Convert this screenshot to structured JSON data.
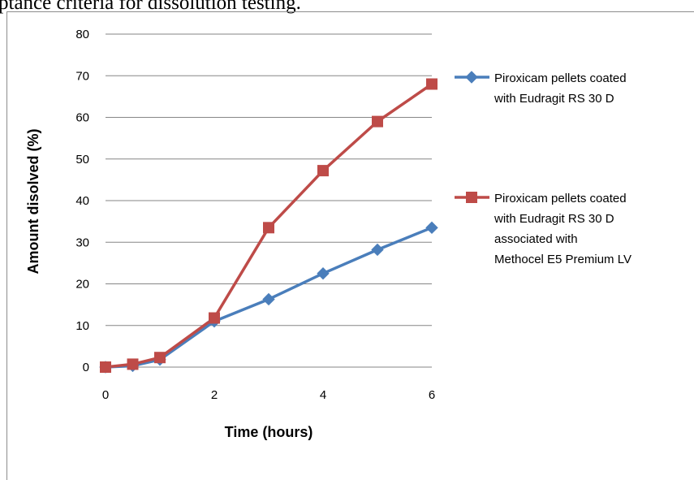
{
  "header_text": "ptance criteria for dissolution testing.",
  "colors": {
    "series1": "#4a7ebb",
    "series2": "#be4b48",
    "grid": "#868686"
  },
  "chart_data": {
    "type": "line",
    "title": "",
    "xlabel": "Time (hours)",
    "ylabel": "Amount disolved (%)",
    "xlim": [
      0,
      6
    ],
    "ylim": [
      0,
      80
    ],
    "xticks": [
      0,
      2,
      4,
      6
    ],
    "yticks": [
      0,
      10,
      20,
      30,
      40,
      50,
      60,
      70,
      80
    ],
    "grid": true,
    "legend_position": "right",
    "series": [
      {
        "name": "Piroxicam pellets coated with Eudragit RS 30 D",
        "legend_lines": [
          "Piroxicam pellets coated",
          "with Eudragit RS 30 D"
        ],
        "marker": "diamond",
        "x": [
          0,
          0.5,
          1,
          2,
          3,
          4,
          5,
          6
        ],
        "y": [
          0,
          0.3,
          1.8,
          11,
          16.3,
          22.5,
          28.2,
          33.5
        ]
      },
      {
        "name": "Piroxicam pellets coated with Eudragit RS 30 D associated with Methocel E5 Premium LV",
        "legend_lines": [
          "Piroxicam pellets coated",
          "with Eudragit RS 30 D",
          "associated with",
          "Methocel E5 Premium LV"
        ],
        "marker": "square",
        "x": [
          0,
          0.5,
          1,
          2,
          3,
          4,
          5,
          6
        ],
        "y": [
          0,
          0.7,
          2.3,
          11.8,
          33.5,
          47.2,
          59,
          68
        ]
      }
    ]
  }
}
